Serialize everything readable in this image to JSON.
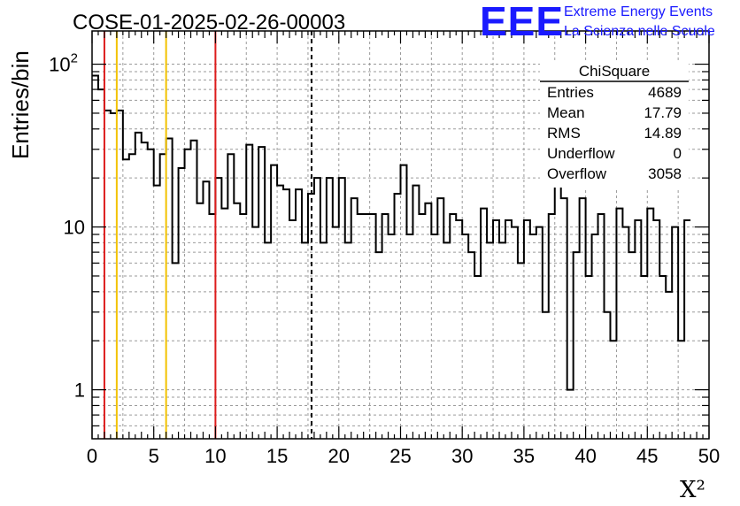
{
  "header": {
    "title": "COSE-01-2025-02-26-00003",
    "logo_text": "EEE",
    "logo_line1": "Extreme Energy Events",
    "logo_line2": "La Scienza nelle Scuole"
  },
  "colors": {
    "histogram": "#000000",
    "red_line": "#dd1c1c",
    "yellow_line": "#f2c200",
    "mean_line": "#000000",
    "grid": "#9a9a9a",
    "logo": "#1a1aff"
  },
  "stats_box": {
    "title": "ChiSquare",
    "rows": [
      {
        "label": "Entries",
        "value": "4689"
      },
      {
        "label": "Mean",
        "value": "17.79"
      },
      {
        "label": "RMS",
        "value": "14.89"
      },
      {
        "label": "Underflow",
        "value": "0"
      },
      {
        "label": "Overflow",
        "value": "3058"
      }
    ]
  },
  "chart_data": {
    "type": "histogram",
    "xlabel": "X²",
    "ylabel": "Entries/bin",
    "xlim": [
      0,
      50
    ],
    "ylim": [
      0.5,
      160
    ],
    "yscale": "log",
    "grid": true,
    "bin_width": 0.5,
    "x_ticks": [
      0,
      5,
      10,
      15,
      20,
      25,
      30,
      35,
      40,
      45,
      50
    ],
    "x_tick_labels": [
      "0",
      "5",
      "10",
      "15",
      "20",
      "25",
      "30",
      "35",
      "40",
      "45",
      "50"
    ],
    "y_ticks": [
      1,
      10,
      100
    ],
    "y_tick_labels": [
      "1",
      "10",
      "10²"
    ],
    "values": [
      85,
      70,
      52,
      50,
      52,
      26,
      28,
      38,
      33,
      30,
      18,
      28,
      35,
      6,
      23,
      30,
      34,
      14,
      19,
      12,
      20,
      13,
      28,
      14,
      12,
      32,
      10,
      31,
      8,
      24,
      18,
      17,
      11,
      17,
      8,
      16,
      20,
      8,
      20,
      10,
      20,
      8,
      15,
      12,
      12,
      12,
      7,
      12,
      9,
      16,
      24,
      9,
      18,
      12,
      14,
      9,
      15,
      8,
      12,
      11,
      9,
      7,
      5,
      13,
      8,
      11,
      8,
      11,
      10,
      6,
      11,
      9,
      10,
      3,
      12,
      18,
      15,
      1,
      7,
      15,
      5,
      9,
      12,
      3,
      2,
      13,
      10,
      7,
      11,
      5,
      13,
      11,
      5,
      4,
      10,
      2,
      11
    ],
    "vertical_lines": [
      {
        "x": 1,
        "color": "#dd1c1c",
        "style": "solid"
      },
      {
        "x": 2,
        "color": "#f2c200",
        "style": "solid"
      },
      {
        "x": 6,
        "color": "#f2c200",
        "style": "solid"
      },
      {
        "x": 10,
        "color": "#dd1c1c",
        "style": "solid"
      },
      {
        "x": 17.79,
        "color": "#000000",
        "style": "dashed"
      }
    ]
  }
}
